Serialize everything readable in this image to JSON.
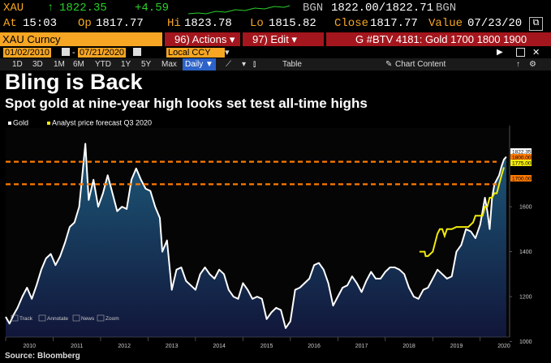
{
  "quote": {
    "ticker": "XAU",
    "arrow": "↑",
    "last": "1822.35",
    "change": "+4.59",
    "bgn_label": "BGN",
    "bid_ask": "1822.00/1822.71",
    "bgn_label2": "BGN",
    "at_label": "At",
    "time": "15:03",
    "op_label": "Op",
    "open": "1817.77",
    "hi_label": "Hi",
    "high": "1823.78",
    "lo_label": "Lo",
    "low": "1815.82",
    "close_label": "Close",
    "close": "1817.77",
    "value_label": "Value",
    "value_date": "07/23/20"
  },
  "function_bar": {
    "security": "XAU Curncy",
    "actions": "96) Actions ▾",
    "edit": "97) Edit ▾",
    "headline": "G #BTV 4181: Gold 1700 1800 1900"
  },
  "date_bar": {
    "start": "01/02/2010",
    "end": "07/21/2020",
    "currency": "Local CCY"
  },
  "tabs": {
    "periods": [
      "1D",
      "3D",
      "1M",
      "6M",
      "YTD",
      "1Y",
      "5Y",
      "Max"
    ],
    "frequency": "Daily ▼",
    "table": "Table",
    "chart_content": "Chart Content"
  },
  "headline": {
    "title": "Bling is Back",
    "subtitle": "Spot gold at nine-year high looks set test all-time highs"
  },
  "source": "Source: Bloomberg",
  "chart_tools": {
    "track": "Track",
    "annotate": "Annotate",
    "news": "News",
    "zoom": "Zoom"
  },
  "colors": {
    "amber": "#f6a623",
    "bloomberg_red": "#a4161d",
    "gold_line": "#ffffff",
    "forecast_line": "#f2ea0a",
    "reference_line": "#ff7a00",
    "area_top": "#1d5a7a",
    "area_bottom": "#11163a"
  },
  "chart_data": {
    "type": "line",
    "legend_position": "top-left",
    "grid": false,
    "xlim": [
      2010.0,
      2020.62
    ],
    "ylim": [
      1020,
      1950
    ],
    "x_ticks": [
      "2010",
      "2011",
      "2012",
      "2013",
      "2014",
      "2015",
      "2016",
      "2017",
      "2018",
      "2019",
      "2020"
    ],
    "y_ticks": [
      1000,
      1200,
      1400,
      1600
    ],
    "series": [
      {
        "name": "Gold",
        "color": "#ffffff",
        "x": [
          2010.0,
          2010.08,
          2010.17,
          2010.25,
          2010.35,
          2010.45,
          2010.55,
          2010.65,
          2010.75,
          2010.85,
          2010.95,
          2011.05,
          2011.15,
          2011.25,
          2011.35,
          2011.45,
          2011.55,
          2011.62,
          2011.68,
          2011.75,
          2011.85,
          2011.95,
          2012.05,
          2012.15,
          2012.25,
          2012.35,
          2012.45,
          2012.55,
          2012.65,
          2012.75,
          2012.85,
          2012.95,
          2013.05,
          2013.15,
          2013.25,
          2013.3,
          2013.4,
          2013.5,
          2013.6,
          2013.7,
          2013.8,
          2013.9,
          2014.0,
          2014.1,
          2014.2,
          2014.3,
          2014.4,
          2014.5,
          2014.6,
          2014.7,
          2014.8,
          2014.9,
          2015.0,
          2015.1,
          2015.2,
          2015.3,
          2015.4,
          2015.5,
          2015.6,
          2015.7,
          2015.8,
          2015.9,
          2016.0,
          2016.1,
          2016.2,
          2016.3,
          2016.4,
          2016.5,
          2016.6,
          2016.7,
          2016.8,
          2016.9,
          2017.0,
          2017.1,
          2017.2,
          2017.3,
          2017.4,
          2017.5,
          2017.6,
          2017.7,
          2017.8,
          2017.9,
          2018.0,
          2018.1,
          2018.2,
          2018.3,
          2018.4,
          2018.5,
          2018.6,
          2018.7,
          2018.8,
          2018.9,
          2019.0,
          2019.1,
          2019.2,
          2019.3,
          2019.4,
          2019.5,
          2019.6,
          2019.7,
          2019.8,
          2019.9,
          2020.0,
          2020.05,
          2020.1,
          2020.15,
          2020.2,
          2020.25,
          2020.3,
          2020.35,
          2020.4,
          2020.45,
          2020.5,
          2020.55
        ],
        "y": [
          1110,
          1080,
          1120,
          1150,
          1200,
          1240,
          1190,
          1250,
          1320,
          1370,
          1390,
          1340,
          1380,
          1440,
          1510,
          1530,
          1600,
          1750,
          1880,
          1630,
          1720,
          1600,
          1660,
          1740,
          1660,
          1580,
          1600,
          1590,
          1720,
          1770,
          1720,
          1680,
          1670,
          1600,
          1550,
          1400,
          1450,
          1230,
          1320,
          1330,
          1270,
          1250,
          1230,
          1300,
          1330,
          1300,
          1280,
          1320,
          1300,
          1230,
          1200,
          1190,
          1260,
          1230,
          1190,
          1200,
          1190,
          1100,
          1130,
          1150,
          1140,
          1060,
          1090,
          1230,
          1240,
          1260,
          1280,
          1340,
          1350,
          1320,
          1260,
          1160,
          1200,
          1240,
          1250,
          1290,
          1260,
          1220,
          1270,
          1310,
          1280,
          1280,
          1310,
          1330,
          1330,
          1320,
          1300,
          1240,
          1200,
          1190,
          1230,
          1240,
          1280,
          1320,
          1300,
          1280,
          1290,
          1400,
          1430,
          1500,
          1490,
          1460,
          1520,
          1580,
          1640,
          1580,
          1500,
          1640,
          1700,
          1720,
          1740,
          1780,
          1810,
          1822
        ]
      },
      {
        "name": "Analyst price forecast Q3 2020",
        "color": "#f2ea0a",
        "x": [
          2018.72,
          2018.83,
          2018.85,
          2018.9,
          2018.95,
          2019.0,
          2019.05,
          2019.1,
          2019.15,
          2019.2,
          2019.25,
          2019.3,
          2019.4,
          2019.5,
          2019.6,
          2019.75,
          2019.85,
          2019.9,
          2019.95,
          2020.0,
          2020.05,
          2020.1,
          2020.15,
          2020.2,
          2020.25,
          2020.3,
          2020.35,
          2020.4,
          2020.45,
          2020.5
        ],
        "y": [
          1400,
          1400,
          1380,
          1380,
          1390,
          1400,
          1440,
          1480,
          1500,
          1500,
          1470,
          1500,
          1500,
          1510,
          1510,
          1510,
          1530,
          1560,
          1560,
          1560,
          1560,
          1600,
          1600,
          1640,
          1640,
          1660,
          1660,
          1700,
          1740,
          1775
        ]
      }
    ],
    "reference_lines": [
      1800,
      1700
    ],
    "last_value_tags": [
      "1822.35",
      "1800.00",
      "1775.00",
      "1700.00"
    ]
  }
}
